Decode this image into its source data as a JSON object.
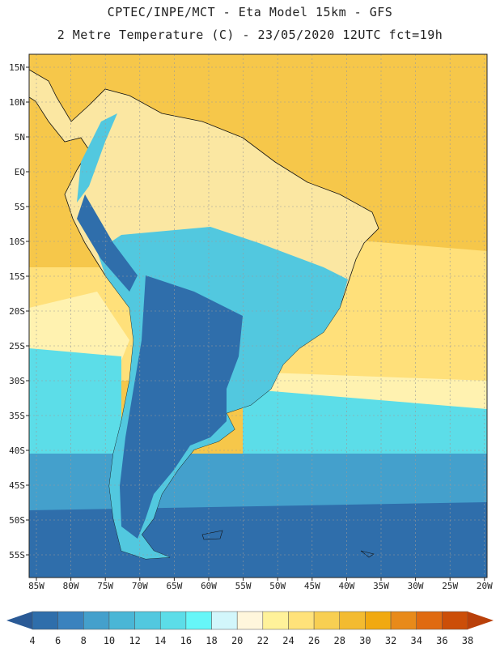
{
  "title_line1": "CPTEC/INPE/MCT -  Eta Model 15km - GFS",
  "title_line2": "2 Metre Temperature (C) - 23/05/2020 12UTC fct=19h",
  "lat_labels": [
    "15N",
    "10N",
    "5N",
    "EQ",
    "5S",
    "10S",
    "15S",
    "20S",
    "25S",
    "30S",
    "35S",
    "40S",
    "45S",
    "50S",
    "55S"
  ],
  "lon_labels": [
    "85W",
    "80W",
    "75W",
    "70W",
    "65W",
    "60W",
    "55W",
    "50W",
    "45W",
    "40W",
    "35W",
    "30W",
    "25W",
    "20W"
  ],
  "colorbar": {
    "labels": [
      "4",
      "6",
      "8",
      "10",
      "12",
      "14",
      "16",
      "18",
      "20",
      "22",
      "24",
      "26",
      "28",
      "30",
      "32",
      "34",
      "36",
      "38"
    ],
    "colors": [
      "#2f6eab",
      "#3a82be",
      "#44a0cc",
      "#4ab6d6",
      "#52c8df",
      "#5cdde8",
      "#66f6f8",
      "#d2f6fb",
      "#fff6dc",
      "#fff29a",
      "#ffe27a",
      "#f8cf52",
      "#f3bb30",
      "#f1a910",
      "#e88a1a",
      "#e06a10",
      "#cc4e08"
    ],
    "low_arrow_color": "#2a5a96",
    "high_arrow_color": "#b9400a"
  },
  "map_colors": {
    "ocean_tropical": "#f6c74a",
    "ocean_subtropical": "#ffe07a",
    "ocean_pale": "#fff2b0",
    "ocean_south": "#5cdde8",
    "ocean_cold": "#44a0cc",
    "ocean_deep": "#2f6eab",
    "land_warm": "#fbe7a2",
    "land_cool": "#52c8df",
    "land_cold": "#2f6eab"
  }
}
